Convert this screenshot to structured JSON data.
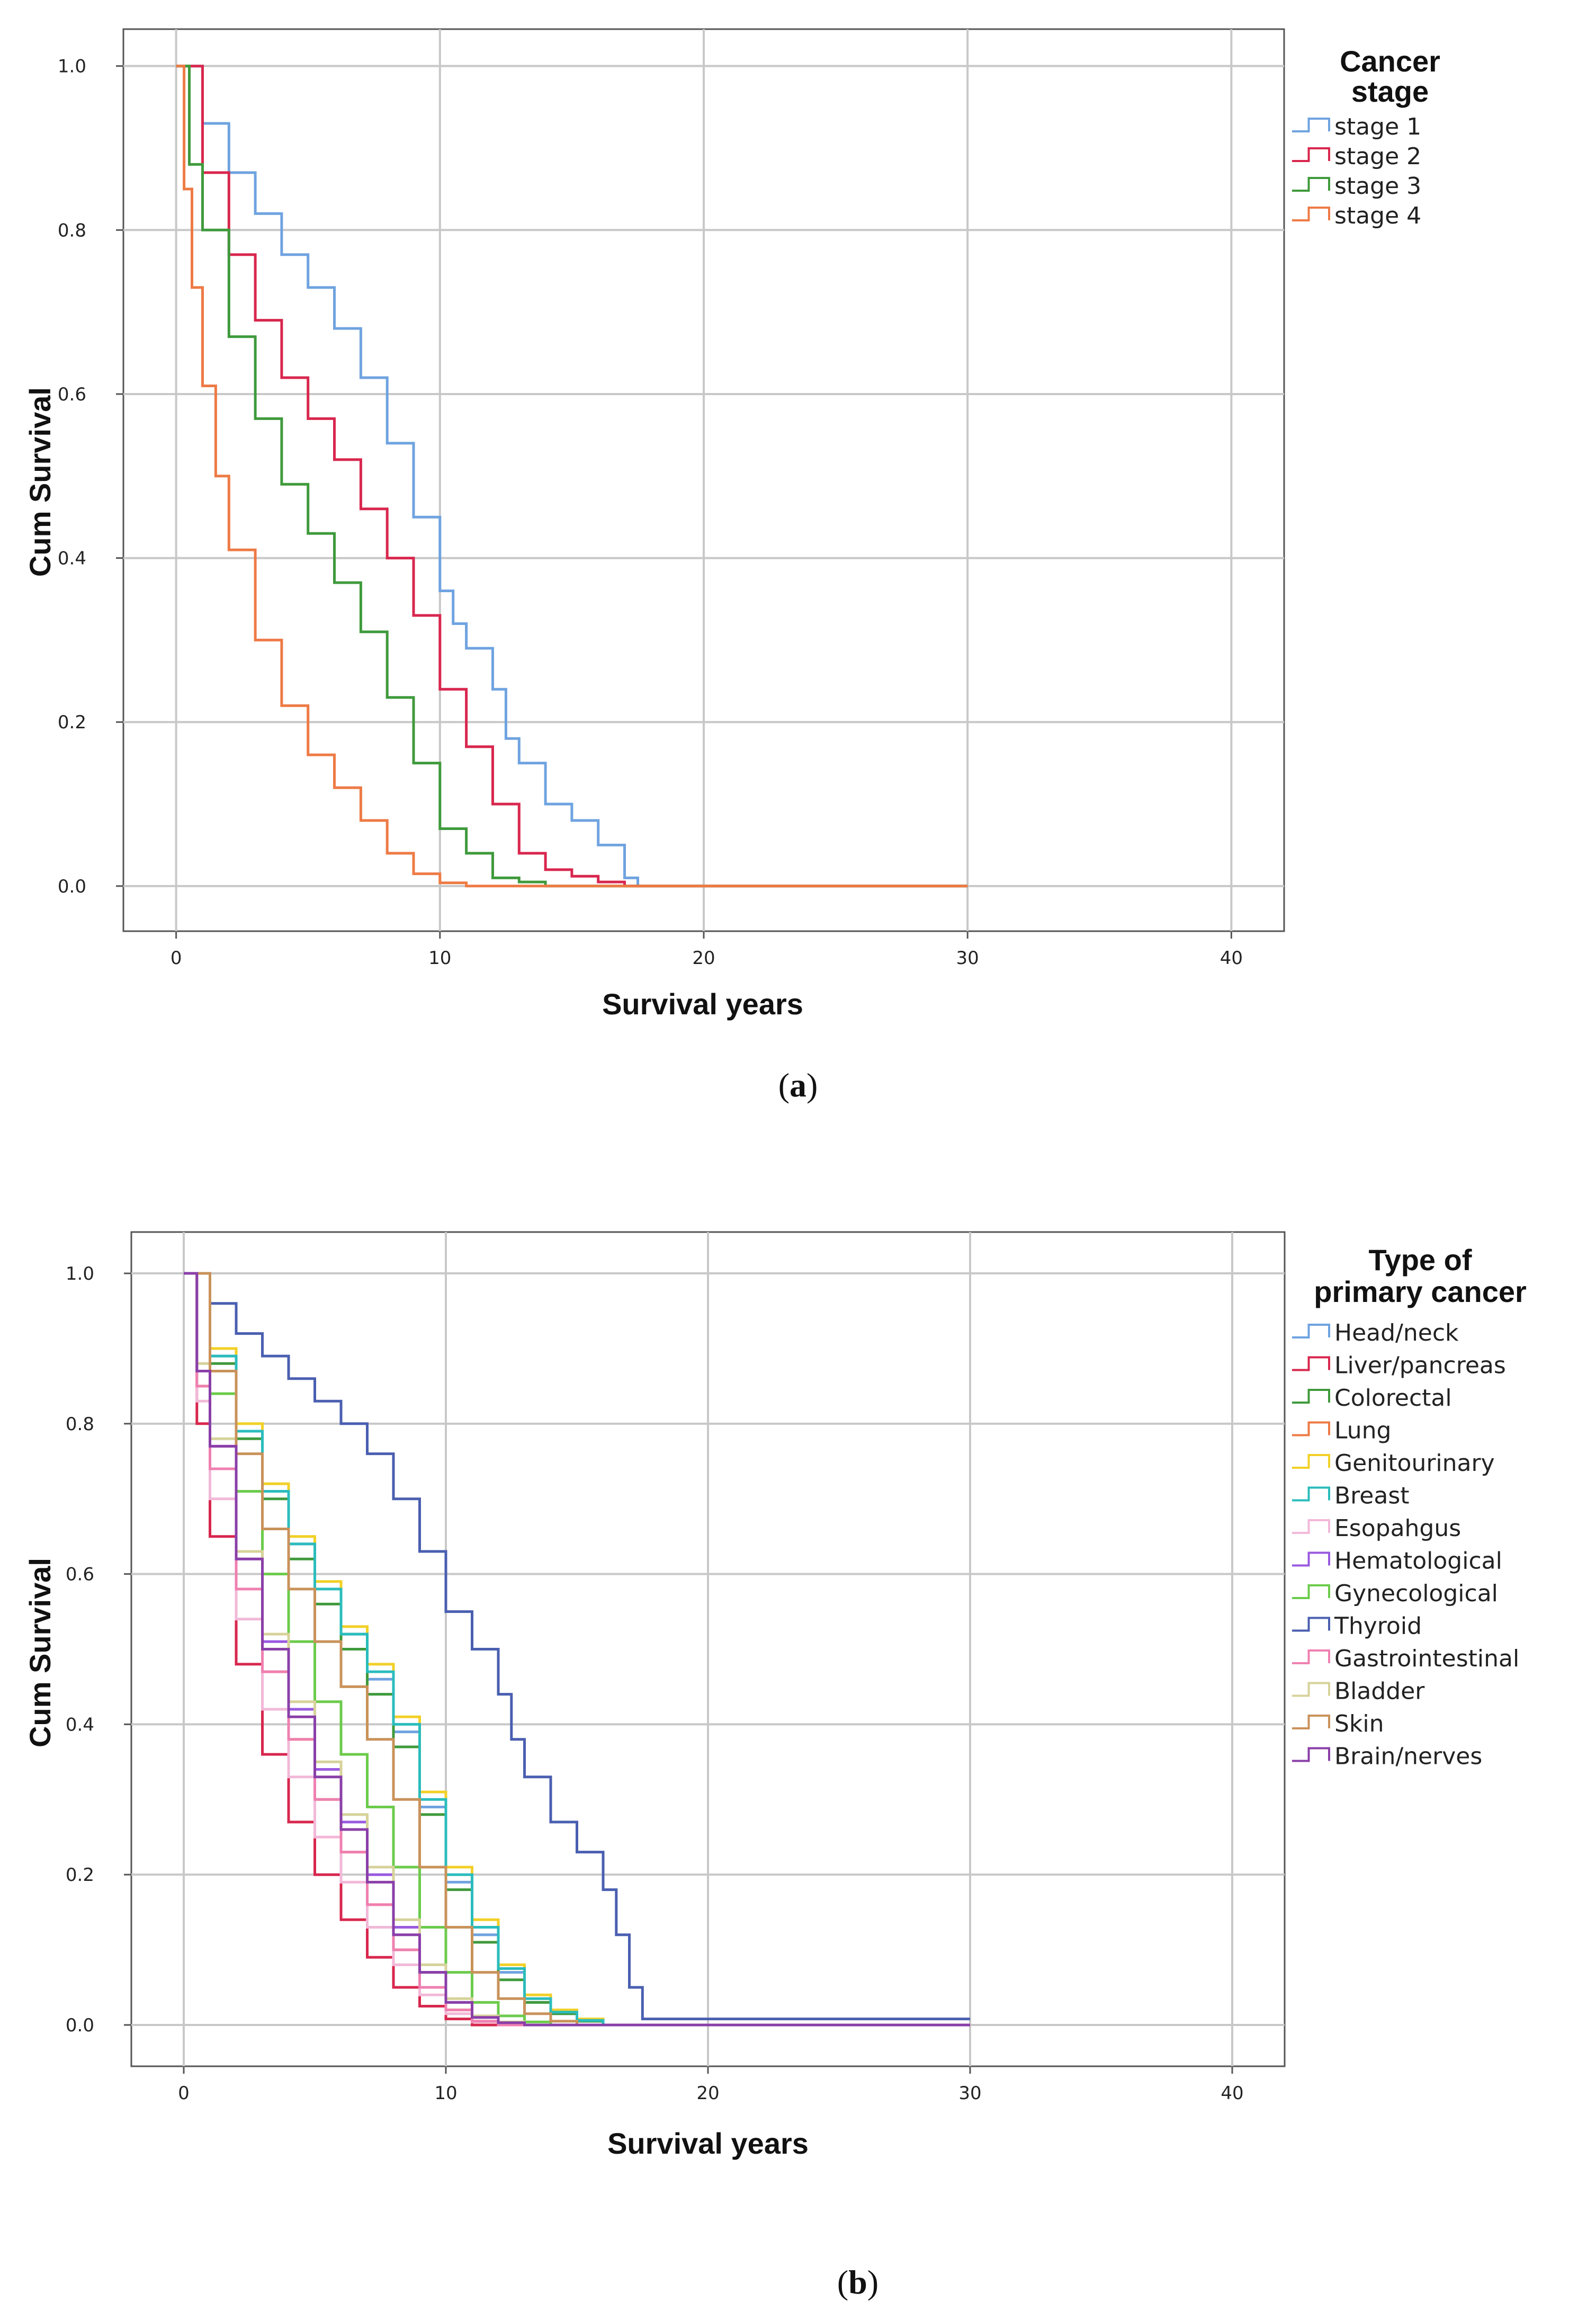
{
  "chart_data": [
    {
      "type": "line",
      "panel": "a",
      "caption_open": "(",
      "caption_letter": "a",
      "caption_close": ")",
      "title": "",
      "xlabel": "Survival years",
      "ylabel": "Cum Survival",
      "xlim": [
        -2,
        42
      ],
      "ylim": [
        -0.055,
        1.045
      ],
      "xticks": [
        0,
        10,
        20,
        30,
        40
      ],
      "xtick_labels": [
        "0",
        "10",
        "20",
        "30",
        "40"
      ],
      "yticks": [
        0.0,
        0.2,
        0.4,
        0.6,
        0.8,
        1.0
      ],
      "ytick_labels": [
        "0.0",
        "0.2",
        "0.4",
        "0.6",
        "0.8",
        "1.0"
      ],
      "grid": true,
      "legend_title": [
        "Cancer",
        "stage"
      ],
      "legend_position": "right",
      "series": [
        {
          "name": "stage 1",
          "color": "#6fa3e0",
          "x": [
            0,
            1,
            2,
            3,
            4,
            5,
            6,
            7,
            8,
            9,
            10,
            10.5,
            11,
            12,
            12.5,
            13,
            14,
            15,
            16,
            17,
            17.5,
            30
          ],
          "y": [
            1.0,
            0.93,
            0.87,
            0.82,
            0.77,
            0.73,
            0.68,
            0.62,
            0.54,
            0.45,
            0.36,
            0.32,
            0.29,
            0.24,
            0.18,
            0.15,
            0.1,
            0.08,
            0.05,
            0.01,
            0.0,
            0.0
          ]
        },
        {
          "name": "stage 2",
          "color": "#d8274e",
          "x": [
            0,
            1,
            2,
            3,
            4,
            5,
            6,
            7,
            8,
            9,
            10,
            11,
            12,
            13,
            14,
            15,
            16,
            17,
            30
          ],
          "y": [
            1.0,
            0.87,
            0.77,
            0.69,
            0.62,
            0.57,
            0.52,
            0.46,
            0.4,
            0.33,
            0.24,
            0.17,
            0.1,
            0.04,
            0.02,
            0.012,
            0.005,
            0.0,
            0.0
          ]
        },
        {
          "name": "stage 3",
          "color": "#3f9a3c",
          "x": [
            0,
            0.5,
            1,
            2,
            3,
            4,
            5,
            6,
            7,
            8,
            9,
            10,
            11,
            12,
            13,
            14,
            30
          ],
          "y": [
            1.0,
            0.88,
            0.8,
            0.67,
            0.57,
            0.49,
            0.43,
            0.37,
            0.31,
            0.23,
            0.15,
            0.07,
            0.04,
            0.01,
            0.005,
            0.0,
            0.0
          ]
        },
        {
          "name": "stage 4",
          "color": "#ee7a45",
          "x": [
            0,
            0.3,
            0.6,
            1,
            1.5,
            2,
            3,
            4,
            5,
            6,
            7,
            8,
            9,
            10,
            11,
            30
          ],
          "y": [
            1.0,
            0.85,
            0.73,
            0.61,
            0.5,
            0.41,
            0.3,
            0.22,
            0.16,
            0.12,
            0.08,
            0.04,
            0.015,
            0.004,
            0.0,
            0.0
          ]
        }
      ]
    },
    {
      "type": "line",
      "panel": "b",
      "caption_open": "(",
      "caption_letter": "b",
      "caption_close": ")",
      "title": "",
      "xlabel": "Survival years",
      "ylabel": "Cum Survival",
      "xlim": [
        -2,
        42
      ],
      "ylim": [
        -0.055,
        1.055
      ],
      "xticks": [
        0,
        10,
        20,
        30,
        40
      ],
      "xtick_labels": [
        "0",
        "10",
        "20",
        "30",
        "40"
      ],
      "yticks": [
        0.0,
        0.2,
        0.4,
        0.6,
        0.8,
        1.0
      ],
      "ytick_labels": [
        "0.0",
        "0.2",
        "0.4",
        "0.6",
        "0.8",
        "1.0"
      ],
      "grid": true,
      "legend_title": [
        "Type of",
        "primary cancer"
      ],
      "legend_position": "right",
      "series": [
        {
          "name": "Head/neck",
          "color": "#6fa3e0",
          "x": [
            0,
            1,
            2,
            3,
            4,
            5,
            6,
            7,
            8,
            9,
            10,
            11,
            12,
            13,
            14,
            15,
            16,
            30
          ],
          "y": [
            1.0,
            0.89,
            0.79,
            0.71,
            0.64,
            0.58,
            0.52,
            0.46,
            0.39,
            0.29,
            0.19,
            0.12,
            0.07,
            0.03,
            0.015,
            0.005,
            0.0,
            0.0
          ]
        },
        {
          "name": "Liver/pancreas",
          "color": "#d8274e",
          "x": [
            0,
            0.5,
            1,
            2,
            3,
            4,
            5,
            6,
            7,
            8,
            9,
            10,
            11,
            30
          ],
          "y": [
            1.0,
            0.8,
            0.65,
            0.48,
            0.36,
            0.27,
            0.2,
            0.14,
            0.09,
            0.05,
            0.025,
            0.008,
            0.0,
            0.0
          ]
        },
        {
          "name": "Colorectal",
          "color": "#3f9a3c",
          "x": [
            0,
            1,
            2,
            3,
            4,
            5,
            6,
            7,
            8,
            9,
            10,
            11,
            12,
            13,
            14,
            15,
            16,
            30
          ],
          "y": [
            1.0,
            0.88,
            0.78,
            0.7,
            0.62,
            0.56,
            0.5,
            0.44,
            0.37,
            0.28,
            0.18,
            0.11,
            0.06,
            0.03,
            0.015,
            0.005,
            0.0,
            0.0
          ]
        },
        {
          "name": "Lung",
          "color": "#ee7a45",
          "x": [
            0,
            0.5,
            1,
            2,
            3,
            4,
            5,
            6,
            7,
            8,
            9,
            10,
            11,
            12,
            30
          ],
          "y": [
            1.0,
            0.85,
            0.74,
            0.58,
            0.47,
            0.38,
            0.3,
            0.23,
            0.16,
            0.1,
            0.05,
            0.02,
            0.005,
            0.0,
            0.0
          ]
        },
        {
          "name": "Genitourinary",
          "color": "#f2d027",
          "x": [
            0,
            1,
            2,
            3,
            4,
            5,
            6,
            7,
            8,
            9,
            10,
            11,
            12,
            13,
            14,
            15,
            16,
            30
          ],
          "y": [
            1.0,
            0.9,
            0.8,
            0.72,
            0.65,
            0.59,
            0.53,
            0.48,
            0.41,
            0.31,
            0.21,
            0.14,
            0.08,
            0.04,
            0.02,
            0.008,
            0.0,
            0.0
          ]
        },
        {
          "name": "Breast",
          "color": "#2bbcbc",
          "x": [
            0,
            1,
            2,
            3,
            4,
            5,
            6,
            7,
            8,
            9,
            10,
            11,
            12,
            13,
            14,
            15,
            16,
            30
          ],
          "y": [
            1.0,
            0.89,
            0.79,
            0.71,
            0.64,
            0.58,
            0.52,
            0.47,
            0.4,
            0.3,
            0.2,
            0.13,
            0.075,
            0.035,
            0.017,
            0.006,
            0.0,
            0.0
          ]
        },
        {
          "name": "Esopahgus",
          "color": "#f2b8d8",
          "x": [
            0,
            0.5,
            1,
            2,
            3,
            4,
            5,
            6,
            7,
            8,
            9,
            10,
            11,
            12,
            30
          ],
          "y": [
            1.0,
            0.83,
            0.7,
            0.54,
            0.42,
            0.33,
            0.25,
            0.19,
            0.13,
            0.08,
            0.04,
            0.015,
            0.004,
            0.0,
            0.0
          ]
        },
        {
          "name": "Hematological",
          "color": "#9a5ae0",
          "x": [
            0,
            0.5,
            1,
            2,
            3,
            4,
            5,
            6,
            7,
            8,
            9,
            10,
            11,
            12,
            13,
            30
          ],
          "y": [
            1.0,
            0.87,
            0.77,
            0.62,
            0.51,
            0.42,
            0.34,
            0.27,
            0.2,
            0.13,
            0.07,
            0.03,
            0.01,
            0.003,
            0.0,
            0.0
          ]
        },
        {
          "name": "Gynecological",
          "color": "#6ccb4c",
          "x": [
            0,
            1,
            2,
            3,
            4,
            5,
            6,
            7,
            8,
            9,
            10,
            11,
            12,
            13,
            14,
            30
          ],
          "y": [
            1.0,
            0.84,
            0.71,
            0.6,
            0.51,
            0.43,
            0.36,
            0.29,
            0.21,
            0.13,
            0.07,
            0.03,
            0.012,
            0.004,
            0.0,
            0.0
          ]
        },
        {
          "name": "Thyroid",
          "color": "#4a5fb0",
          "x": [
            0,
            1,
            2,
            3,
            4,
            5,
            6,
            7,
            8,
            9,
            10,
            11,
            12,
            12.5,
            13,
            14,
            15,
            16,
            16.5,
            17,
            17.5,
            30
          ],
          "y": [
            1.0,
            0.96,
            0.92,
            0.89,
            0.86,
            0.83,
            0.8,
            0.76,
            0.7,
            0.63,
            0.55,
            0.5,
            0.44,
            0.38,
            0.33,
            0.27,
            0.23,
            0.18,
            0.12,
            0.05,
            0.008,
            0.008
          ]
        },
        {
          "name": "Gastrointestinal",
          "color": "#ef80b0",
          "x": [
            0,
            0.5,
            1,
            2,
            3,
            4,
            5,
            6,
            7,
            8,
            9,
            10,
            11,
            12,
            30
          ],
          "y": [
            1.0,
            0.85,
            0.74,
            0.58,
            0.47,
            0.38,
            0.3,
            0.23,
            0.16,
            0.1,
            0.05,
            0.02,
            0.005,
            0.0,
            0.0
          ]
        },
        {
          "name": "Bladder",
          "color": "#d6d29a",
          "x": [
            0,
            0.5,
            1,
            2,
            3,
            4,
            5,
            6,
            7,
            8,
            9,
            10,
            11,
            12,
            13,
            30
          ],
          "y": [
            1.0,
            0.88,
            0.78,
            0.63,
            0.52,
            0.43,
            0.35,
            0.28,
            0.21,
            0.14,
            0.08,
            0.035,
            0.012,
            0.004,
            0.0,
            0.0
          ]
        },
        {
          "name": "Skin",
          "color": "#c9925a",
          "x": [
            0,
            1,
            2,
            3,
            4,
            5,
            6,
            7,
            8,
            9,
            10,
            11,
            12,
            13,
            14,
            15,
            30
          ],
          "y": [
            1.0,
            0.87,
            0.76,
            0.66,
            0.58,
            0.51,
            0.45,
            0.38,
            0.3,
            0.21,
            0.13,
            0.07,
            0.035,
            0.015,
            0.005,
            0.0,
            0.0
          ]
        },
        {
          "name": "Brain/nerves",
          "color": "#8a3fa8",
          "x": [
            0,
            0.5,
            1,
            2,
            3,
            4,
            5,
            6,
            7,
            8,
            9,
            10,
            11,
            12,
            13,
            30
          ],
          "y": [
            1.0,
            0.87,
            0.77,
            0.62,
            0.5,
            0.41,
            0.33,
            0.26,
            0.19,
            0.12,
            0.07,
            0.03,
            0.01,
            0.003,
            0.0,
            0.0
          ]
        }
      ]
    }
  ]
}
